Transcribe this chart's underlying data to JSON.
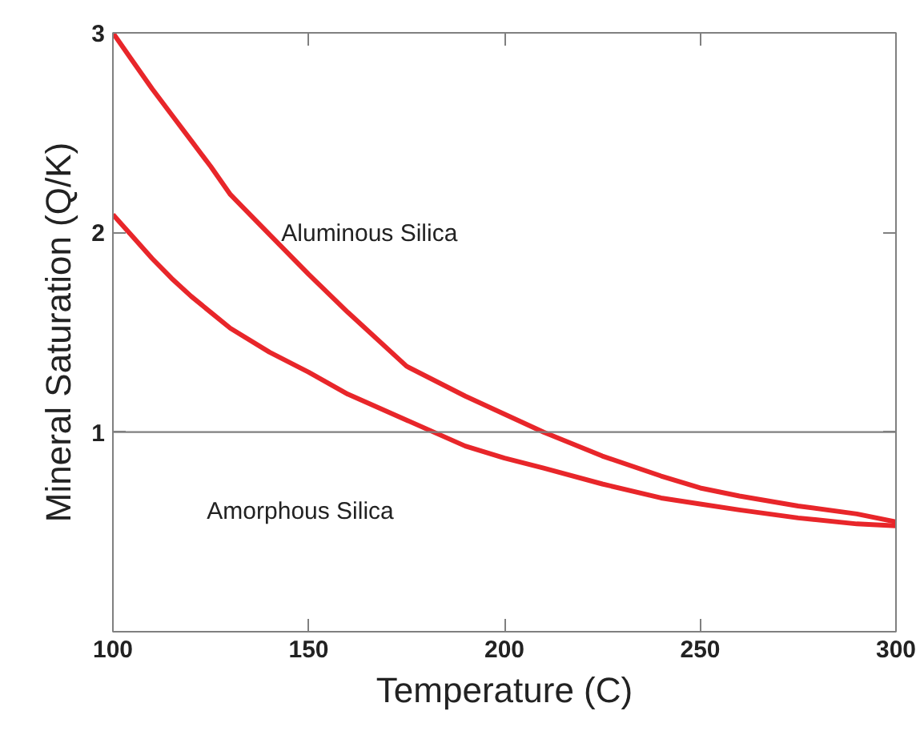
{
  "chart_data": {
    "type": "line",
    "xlabel": "Temperature (C)",
    "ylabel": "Mineral Saturation (Q/K)",
    "x": [
      100,
      105,
      110,
      115,
      120,
      125,
      130,
      140,
      150,
      160,
      175,
      190,
      200,
      210,
      225,
      240,
      250,
      260,
      275,
      290,
      300
    ],
    "series": [
      {
        "color": "#e8262a",
        "values": [
          3.0,
          2.86,
          2.72,
          2.59,
          2.46,
          2.33,
          2.19,
          1.99,
          1.79,
          1.6,
          1.33,
          1.18,
          1.09,
          1.0,
          0.88,
          0.78,
          0.72,
          0.68,
          0.63,
          0.59,
          0.55
        ]
      },
      {
        "color": "#e8262a",
        "values": [
          2.09,
          1.98,
          1.87,
          1.77,
          1.68,
          1.6,
          1.52,
          1.4,
          1.3,
          1.19,
          1.06,
          0.93,
          0.87,
          0.82,
          0.74,
          0.67,
          0.64,
          0.61,
          0.57,
          0.54,
          0.53
        ]
      }
    ],
    "xlim": [
      100,
      300
    ],
    "xticks": [
      100,
      150,
      200,
      250,
      300
    ],
    "ylim": [
      0,
      3
    ],
    "yticks": [
      1,
      2,
      3
    ],
    "ref_lines": [
      {
        "axis": "y",
        "value": 1,
        "color": "#808080"
      }
    ],
    "annotations": [
      "Aluminous Silica",
      "Amorphous Silica"
    ],
    "grid": false,
    "marker": "none",
    "line_style": "solid"
  }
}
